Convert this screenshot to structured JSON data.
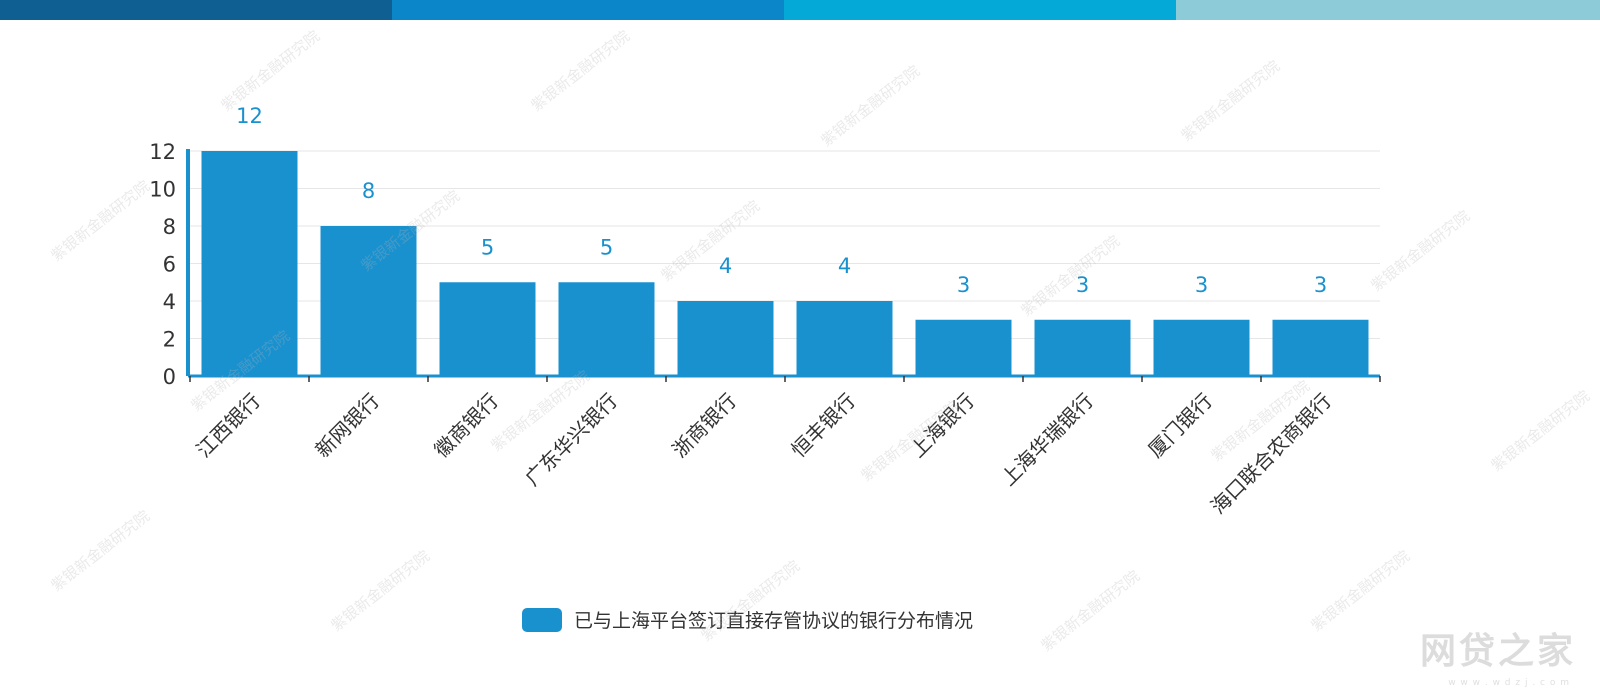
{
  "colors": {
    "bar": "#1a91cf",
    "data_label": "#1a91cf",
    "axis": "#1a91cf",
    "grid": "#e6e6e6",
    "stripe": [
      "#0f5f93",
      "#0a86c9",
      "#04a9d8",
      "#8ecbd8"
    ]
  },
  "chart_data": {
    "type": "bar",
    "categories": [
      "江西银行",
      "新网银行",
      "徽商银行",
      "广东华兴银行",
      "浙商银行",
      "恒丰银行",
      "上海银行",
      "上海华瑞银行",
      "厦门银行",
      "海口联合农商银行"
    ],
    "series": [
      {
        "name": "已与上海平台签订直接存管协议的银行分布情况",
        "values": [
          12,
          8,
          5,
          5,
          4,
          4,
          3,
          3,
          3,
          3
        ]
      }
    ],
    "ylim": [
      0,
      12
    ],
    "yticks": [
      0,
      2,
      4,
      6,
      8,
      10,
      12
    ],
    "grid": true,
    "legend_position": "bottom-center",
    "data_labels": true
  },
  "watermark": {
    "logo": "网贷之家",
    "sub": "w w w . w d z j . c o m",
    "tiles": "紫银新金融研究院"
  }
}
